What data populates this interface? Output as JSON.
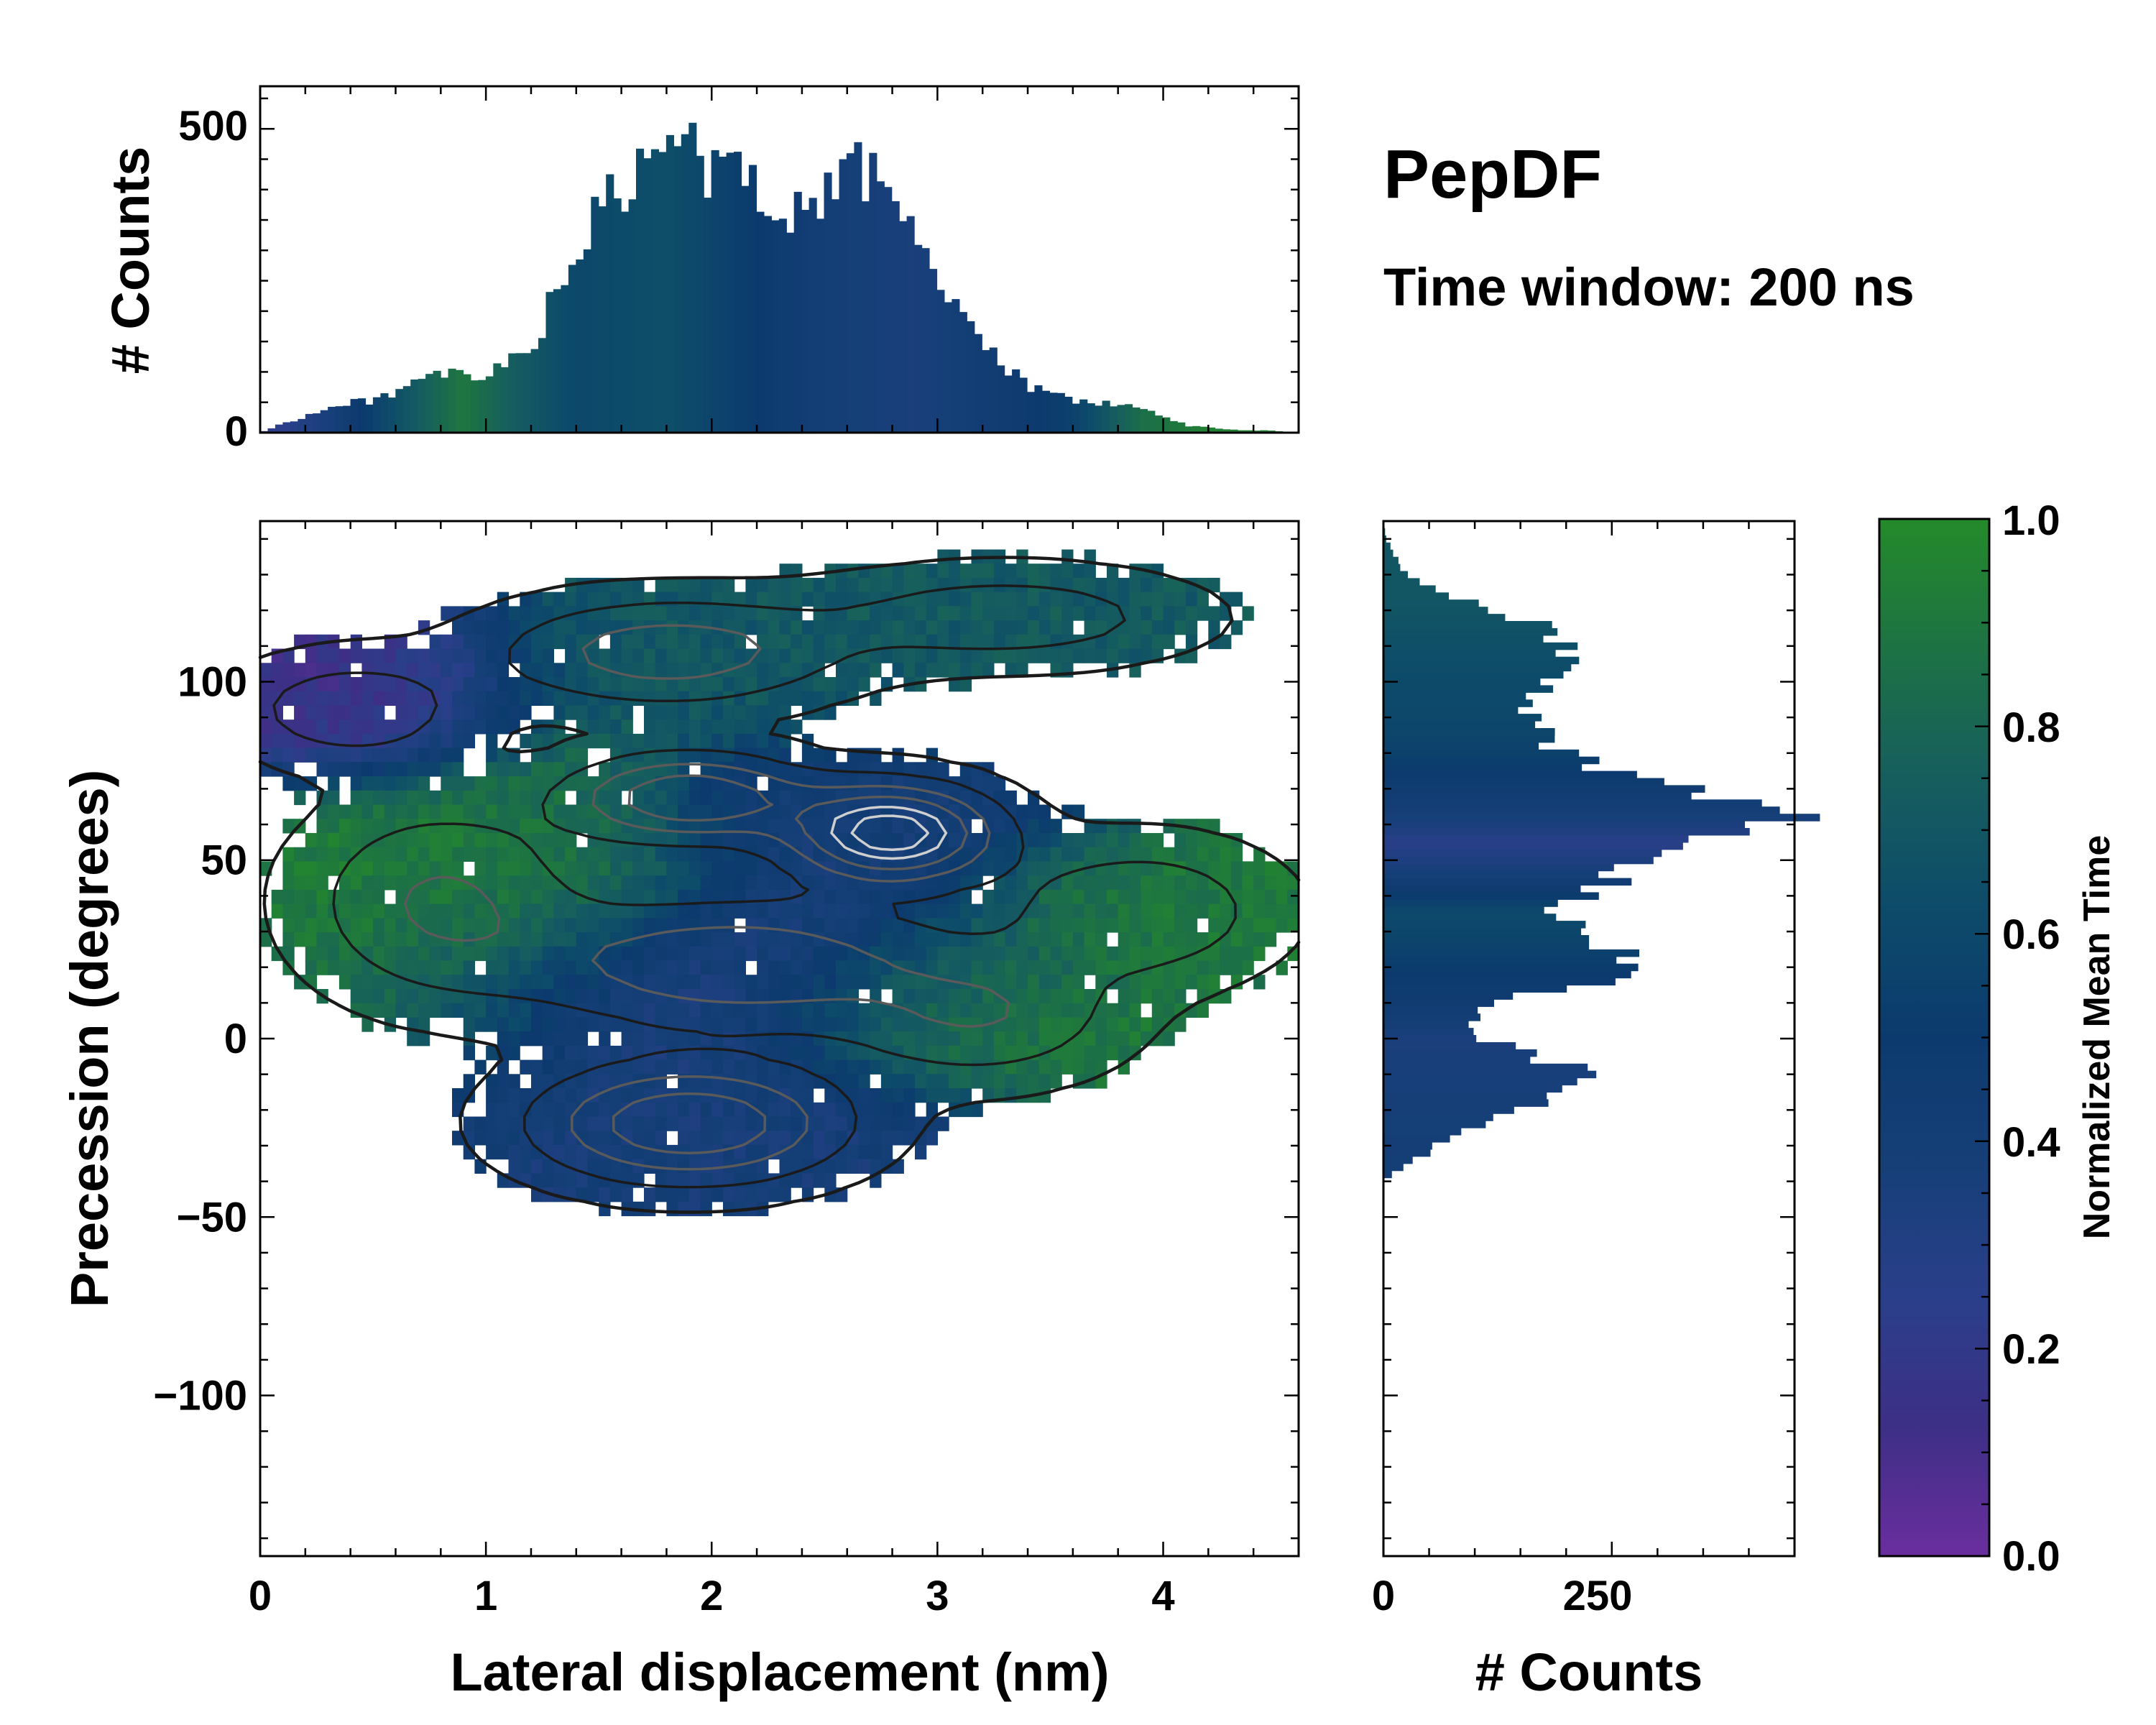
{
  "title": "PepDF",
  "subtitle": "Time window: 200 ns",
  "colors": {
    "colormap": [
      "#6a2e9e",
      "#3d2f86",
      "#2a3f8a",
      "#163f78",
      "#0c3a6e",
      "#0d4b6a",
      "#165e5e",
      "#1d7244",
      "#248a2a"
    ],
    "contour_dark": "#1a1a1a",
    "contour_mid": "#5a5a5a",
    "contour_light": "#cfcfcf"
  },
  "chart_data": [
    {
      "id": "top-marginal",
      "type": "bar",
      "description": "marginal histogram of lateral displacement, bars colored by normalized mean time",
      "ylabel": "# Counts",
      "xlim": [
        0,
        4.6
      ],
      "ylim": [
        0,
        570
      ],
      "yticks": [
        0,
        500
      ],
      "ytick_labels": [
        "0",
        "500"
      ],
      "bin_width": 0.0333,
      "profile_x": [
        0.0,
        0.1,
        0.3,
        0.5,
        0.7,
        0.8,
        1.0,
        1.2,
        1.3,
        1.45,
        1.6,
        1.75,
        1.8,
        1.9,
        2.05,
        2.2,
        2.3,
        2.45,
        2.6,
        2.75,
        2.85,
        3.0,
        3.2,
        3.4,
        3.6,
        3.8,
        3.95,
        4.1,
        4.3,
        4.5,
        4.6
      ],
      "profile_counts": [
        0,
        15,
        40,
        55,
        80,
        95,
        90,
        140,
        220,
        330,
        400,
        440,
        490,
        460,
        430,
        410,
        370,
        390,
        420,
        435,
        380,
        250,
        140,
        75,
        55,
        45,
        35,
        12,
        5,
        3,
        0
      ],
      "color_x": [
        0.0,
        0.3,
        0.6,
        0.9,
        1.1,
        1.4,
        1.8,
        2.2,
        2.5,
        2.9,
        3.3,
        3.6,
        3.9,
        4.2,
        4.6
      ],
      "color_t": [
        0.2,
        0.35,
        0.65,
        0.9,
        0.75,
        0.6,
        0.65,
        0.5,
        0.4,
        0.35,
        0.45,
        0.55,
        0.85,
        0.95,
        0.95
      ]
    },
    {
      "id": "main-heatmap",
      "type": "heatmap",
      "description": "2D distribution of lateral displacement vs precession; cell color = normalized mean time, gray/black contours = density",
      "xlabel": "Lateral displacement (nm)",
      "ylabel": "Precession (degrees)",
      "xlim": [
        0,
        4.6
      ],
      "ylim": [
        -145,
        145
      ],
      "xticks": [
        0,
        1,
        2,
        3,
        4
      ],
      "xtick_labels": [
        "0",
        "1",
        "2",
        "3",
        "4"
      ],
      "yticks": [
        -100,
        -50,
        0,
        50,
        100
      ],
      "ytick_labels": [
        "−100",
        "−50",
        "0",
        "50",
        "100"
      ],
      "regions": [
        {
          "cx": 0.5,
          "cy": 95,
          "sx": 0.4,
          "sy": 12,
          "t": 0.12
        },
        {
          "cx": 0.8,
          "cy": 35,
          "sx": 0.5,
          "sy": 22,
          "t": 0.92
        },
        {
          "cx": 1.4,
          "cy": 55,
          "sx": 0.35,
          "sy": 18,
          "t": 0.9
        },
        {
          "cx": 2.1,
          "cy": 100,
          "sx": 0.7,
          "sy": 12,
          "t": 0.7
        },
        {
          "cx": 3.4,
          "cy": 118,
          "sx": 0.6,
          "sy": 10,
          "t": 0.72
        },
        {
          "cx": 2.5,
          "cy": 60,
          "sx": 0.6,
          "sy": 14,
          "t": 0.4
        },
        {
          "cx": 2.0,
          "cy": 15,
          "sx": 0.7,
          "sy": 15,
          "t": 0.3
        },
        {
          "cx": 2.0,
          "cy": -20,
          "sx": 0.6,
          "sy": 13,
          "t": 0.38
        },
        {
          "cx": 3.0,
          "cy": 10,
          "sx": 0.45,
          "sy": 12,
          "t": 0.85
        },
        {
          "cx": 4.0,
          "cy": 35,
          "sx": 0.45,
          "sy": 14,
          "t": 0.9
        },
        {
          "cx": 3.3,
          "cy": 0,
          "sx": 0.45,
          "sy": 10,
          "t": 0.92
        }
      ],
      "density_peaks": [
        {
          "cx": 2.8,
          "cy": 57,
          "sx": 0.3,
          "sy": 9,
          "w": 1.0
        },
        {
          "cx": 1.9,
          "cy": 67,
          "sx": 0.35,
          "sy": 8,
          "w": 0.75
        },
        {
          "cx": 1.9,
          "cy": -25,
          "sx": 0.45,
          "sy": 11,
          "w": 0.75
        },
        {
          "cx": 2.1,
          "cy": 20,
          "sx": 0.6,
          "sy": 12,
          "w": 0.55
        },
        {
          "cx": 1.8,
          "cy": 108,
          "sx": 0.5,
          "sy": 10,
          "w": 0.5
        },
        {
          "cx": 0.8,
          "cy": 38,
          "sx": 0.4,
          "sy": 18,
          "w": 0.4
        },
        {
          "cx": 0.4,
          "cy": 92,
          "sx": 0.35,
          "sy": 10,
          "w": 0.32
        },
        {
          "cx": 3.3,
          "cy": 118,
          "sx": 0.55,
          "sy": 9,
          "w": 0.32
        },
        {
          "cx": 3.9,
          "cy": 35,
          "sx": 0.4,
          "sy": 13,
          "w": 0.35
        },
        {
          "cx": 3.2,
          "cy": 5,
          "sx": 0.4,
          "sy": 12,
          "w": 0.35
        }
      ],
      "contour_levels": [
        0.06,
        0.2,
        0.38,
        0.56,
        0.74,
        0.88
      ]
    },
    {
      "id": "right-marginal",
      "type": "bar",
      "orientation": "horizontal",
      "description": "marginal histogram of precession, bars colored by normalized mean time",
      "xlabel": "# Counts",
      "xlim": [
        0,
        450
      ],
      "xticks": [
        0,
        250
      ],
      "xtick_labels": [
        "0",
        "250"
      ],
      "ylim": [
        -145,
        145
      ],
      "bin_width": 2,
      "profile_y": [
        -145,
        -40,
        -38,
        -30,
        -20,
        -10,
        -5,
        0,
        5,
        10,
        15,
        20,
        25,
        30,
        35,
        40,
        45,
        50,
        55,
        58,
        62,
        65,
        70,
        75,
        80,
        85,
        90,
        100,
        110,
        115,
        120,
        125,
        130,
        140,
        145
      ],
      "profile_counts": [
        0,
        0,
        10,
        60,
        150,
        230,
        170,
        110,
        90,
        120,
        220,
        300,
        250,
        210,
        190,
        215,
        260,
        290,
        330,
        360,
        430,
        390,
        320,
        250,
        200,
        170,
        160,
        180,
        200,
        180,
        120,
        60,
        25,
        3,
        0
      ],
      "color_y": [
        -40,
        -20,
        0,
        10,
        25,
        35,
        45,
        55,
        60,
        70,
        80,
        90,
        100,
        110,
        125,
        140
      ],
      "color_t": [
        0.4,
        0.38,
        0.35,
        0.45,
        0.55,
        0.62,
        0.4,
        0.25,
        0.35,
        0.45,
        0.55,
        0.6,
        0.62,
        0.65,
        0.7,
        0.7
      ]
    },
    {
      "id": "colorbar",
      "type": "colorbar",
      "label": "Normalized Mean Time",
      "range": [
        0,
        1
      ],
      "ticks": [
        0.0,
        0.2,
        0.4,
        0.6,
        0.8,
        1.0
      ],
      "tick_labels": [
        "0.0",
        "0.2",
        "0.4",
        "0.6",
        "0.8",
        "1.0"
      ]
    }
  ]
}
